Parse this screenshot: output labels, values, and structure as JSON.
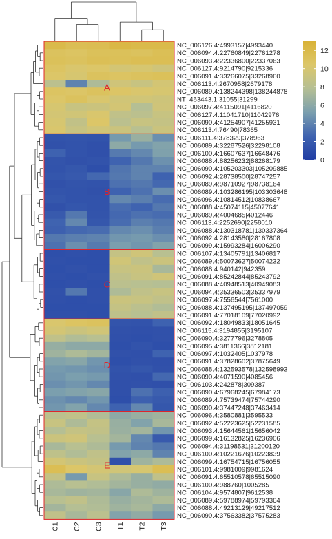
{
  "chart_data": {
    "type": "heatmap",
    "columns": [
      "C1",
      "C2",
      "C3",
      "T1",
      "T2",
      "T3"
    ],
    "rows": [
      "NC_006126.4:4993157|4993440",
      "NC_006094.4:22760849|22761278",
      "NC_006093.4:22336800|22337063",
      "NC_006127.4:9214790|9215336",
      "NC_006091.4:33266075|33268960",
      "NC_006113.4:2670958|2679178",
      "NC_006089.4:138244398|138244878",
      "NT_463443.1:31055|31299",
      "NC_006097.4:4115091|4116820",
      "NC_006127.4:11041710|11042976",
      "NC_006090.4:41254907|41255931",
      "NC_006113.4:76490|78365",
      "NC_006111.4:378329|378963",
      "NC_006089.4:32287526|32298108",
      "NC_006100.4:16607637|16648476",
      "NC_006088.4:88256232|88268179",
      "NC_006090.4:105203303|105209885",
      "NC_006092.4:28738500|28747257",
      "NC_006089.4:98710927|98738164",
      "NC_006089.4:103286195|103303648",
      "NC_006096.4:10814512|10838667",
      "NC_006088.4:45074115|45077641",
      "NC_006089.4:4004685|4012446",
      "NC_006113.4:2252690|2258010",
      "NC_006088.4:130318781|130337364",
      "NC_006092.4:28143580|28167808",
      "NC_006099.4:15993284|16006290",
      "NC_006107.4:13405791|13406817",
      "NC_006089.4:50073627|50074232",
      "NC_006088.4:940142|942359",
      "NC_006091.4:85242844|85243792",
      "NC_006088.4:40948513|40949083",
      "NC_006094.4:35336503|35337979",
      "NC_006097.4:7556544|7561000",
      "NC_006088.4:137495195|137497059",
      "NC_006091.4:77018109|77020992",
      "NC_006092.4:18049833|18051645",
      "NC_006115.4:3194855|3195107",
      "NC_006090.4:3277796|3278805",
      "NC_006095.4:3811366|3812181",
      "NC_006097.4:1032405|1037978",
      "NC_006091.4:37828602|37875649",
      "NC_006088.4:132593578|132598993",
      "NC_006090.4:4071590|4085456",
      "NC_006103.4:242878|309387",
      "NC_006090.4:67968245|67984173",
      "NC_006089.4:75739474|75744290",
      "NC_006090.4:37447248|37463414",
      "NC_006096.4:3580881|3595533",
      "NC_006092.4:52223625|52231585",
      "NC_006093.4:15644561|15656042",
      "NC_006099.4:16132825|16236906",
      "NC_006094.4:31198531|31200120",
      "NC_006100.4:10221676|10223839",
      "NC_006099.4:16754715|16756055",
      "NC_006101.4:9981009|9981624",
      "NC_006091.4:65510578|65515090",
      "NC_006100.4:988760|1005285",
      "NC_006104.4:9574807|9612538",
      "NC_006089.4:59788974|59793364",
      "NC_006088.4:49213129|49217512",
      "NC_006090.4:37563382|37575283"
    ],
    "values": [
      [
        12.0,
        11.5,
        11.6,
        12.2,
        12.0,
        12.0
      ],
      [
        11.0,
        10.8,
        11.2,
        11.2,
        11.0,
        11.4
      ],
      [
        11.2,
        11.0,
        11.4,
        11.3,
        11.5,
        11.5
      ],
      [
        10.8,
        10.2,
        10.5,
        9.8,
        10.0,
        9.5
      ],
      [
        10.5,
        10.0,
        11.0,
        10.8,
        11.0,
        11.2
      ],
      [
        8.2,
        4.0,
        7.5,
        9.5,
        9.0,
        9.8
      ],
      [
        10.8,
        10.6,
        11.0,
        10.6,
        10.2,
        10.0
      ],
      [
        10.5,
        11.0,
        10.2,
        9.6,
        9.6,
        9.4
      ],
      [
        10.0,
        9.0,
        9.2,
        9.8,
        7.8,
        9.5
      ],
      [
        9.8,
        9.6,
        10.2,
        8.5,
        8.2,
        9.0
      ],
      [
        10.0,
        8.6,
        10.5,
        8.2,
        9.0,
        8.8
      ],
      [
        10.2,
        9.0,
        9.6,
        9.2,
        8.0,
        9.2
      ],
      [
        1.5,
        1.6,
        1.5,
        5.0,
        6.5,
        4.5
      ],
      [
        1.4,
        1.5,
        1.3,
        6.0,
        5.0,
        5.5
      ],
      [
        2.5,
        1.5,
        1.3,
        3.6,
        4.2,
        5.4
      ],
      [
        1.6,
        1.4,
        1.5,
        2.6,
        3.5,
        4.6
      ],
      [
        1.5,
        1.8,
        1.2,
        3.4,
        4.0,
        4.0
      ],
      [
        1.7,
        1.9,
        2.8,
        3.5,
        4.0,
        2.5
      ],
      [
        1.4,
        1.6,
        1.5,
        3.2,
        3.5,
        2.8
      ],
      [
        1.6,
        1.5,
        1.4,
        2.5,
        3.2,
        4.5
      ],
      [
        1.8,
        1.5,
        1.5,
        4.2,
        3.8,
        3.0
      ],
      [
        1.4,
        1.7,
        1.5,
        3.0,
        2.6,
        3.5
      ],
      [
        2.0,
        3.5,
        1.6,
        2.8,
        3.2,
        3.0
      ],
      [
        2.6,
        4.2,
        1.8,
        3.0,
        3.8,
        3.5
      ],
      [
        2.4,
        2.8,
        3.0,
        4.2,
        4.5,
        3.8
      ],
      [
        3.5,
        3.8,
        4.0,
        4.8,
        5.0,
        4.5
      ],
      [
        3.2,
        4.5,
        3.6,
        5.2,
        4.8,
        5.5
      ],
      [
        1.2,
        1.3,
        1.2,
        8.8,
        9.5,
        8.0
      ],
      [
        1.3,
        1.2,
        1.2,
        9.6,
        8.5,
        9.2
      ],
      [
        1.2,
        1.4,
        1.2,
        9.0,
        9.2,
        7.2
      ],
      [
        1.3,
        1.2,
        1.4,
        8.5,
        9.0,
        9.5
      ],
      [
        1.2,
        1.3,
        1.2,
        8.2,
        8.0,
        7.8
      ],
      [
        1.4,
        3.5,
        1.3,
        7.5,
        8.5,
        9.0
      ],
      [
        1.3,
        1.2,
        1.3,
        9.2,
        9.0,
        8.5
      ],
      [
        1.2,
        1.2,
        1.2,
        8.8,
        8.2,
        7.6
      ],
      [
        1.3,
        1.3,
        1.2,
        8.4,
        8.0,
        8.5
      ],
      [
        10.2,
        10.8,
        11.0,
        1.6,
        1.5,
        2.5
      ],
      [
        9.8,
        9.2,
        9.6,
        1.4,
        1.3,
        1.4
      ],
      [
        8.5,
        7.6,
        8.0,
        1.3,
        1.2,
        1.4
      ],
      [
        6.4,
        6.0,
        6.0,
        1.2,
        1.5,
        1.2
      ],
      [
        6.8,
        7.5,
        7.0,
        1.4,
        1.3,
        2.6
      ],
      [
        5.5,
        5.8,
        4.8,
        1.2,
        1.4,
        1.3
      ],
      [
        5.0,
        4.8,
        4.5,
        1.5,
        1.8,
        1.4
      ],
      [
        4.8,
        5.2,
        5.0,
        1.4,
        1.3,
        2.8
      ],
      [
        4.5,
        4.8,
        4.2,
        1.3,
        1.4,
        1.3
      ],
      [
        5.2,
        5.5,
        5.8,
        1.3,
        3.2,
        2.4
      ],
      [
        4.6,
        4.2,
        4.8,
        1.2,
        2.4,
        2.0
      ],
      [
        4.8,
        5.5,
        4.2,
        2.5,
        4.2,
        1.8
      ],
      [
        8.2,
        8.5,
        7.6,
        6.0,
        6.5,
        6.8
      ],
      [
        9.0,
        7.5,
        8.8,
        6.5,
        5.5,
        7.2
      ],
      [
        7.8,
        8.8,
        8.6,
        6.6,
        7.0,
        4.8
      ],
      [
        9.2,
        9.5,
        8.0,
        7.0,
        4.2,
        2.0
      ],
      [
        7.2,
        8.0,
        7.5,
        5.0,
        4.0,
        3.5
      ],
      [
        8.4,
        7.6,
        8.5,
        5.5,
        6.0,
        4.0
      ],
      [
        9.8,
        9.2,
        8.8,
        1.3,
        6.8,
        7.5
      ],
      [
        11.5,
        10.5,
        9.8,
        9.6,
        10.0,
        11.5
      ],
      [
        8.8,
        5.0,
        9.0,
        7.5,
        6.5,
        8.5
      ],
      [
        7.5,
        8.0,
        7.6,
        7.0,
        6.5,
        6.2
      ],
      [
        7.2,
        6.8,
        7.0,
        5.8,
        7.5,
        6.8
      ],
      [
        8.0,
        8.5,
        7.5,
        6.5,
        7.0,
        7.5
      ],
      [
        7.0,
        7.8,
        7.6,
        6.8,
        7.2,
        6.0
      ],
      [
        8.5,
        7.2,
        8.2,
        5.5,
        6.2,
        5.0
      ]
    ],
    "clusters": [
      {
        "label": "A",
        "start": 0,
        "end": 11
      },
      {
        "label": "B",
        "start": 12,
        "end": 26
      },
      {
        "label": "C",
        "start": 27,
        "end": 35
      },
      {
        "label": "D",
        "start": 36,
        "end": 47
      },
      {
        "label": "E",
        "start": 48,
        "end": 61
      }
    ],
    "color_scale": {
      "min": 0,
      "max": 13,
      "ticks": [
        0,
        2,
        4,
        6,
        8,
        10,
        12
      ],
      "colors": [
        "#203da4",
        "#3f63b0",
        "#7b9fae",
        "#b5bf94",
        "#dcc76a",
        "#d9b236"
      ]
    },
    "cluster_border_color": "#e0242a",
    "legend_position": "top-right",
    "dendrogram_rows": true,
    "dendrogram_columns": true
  }
}
